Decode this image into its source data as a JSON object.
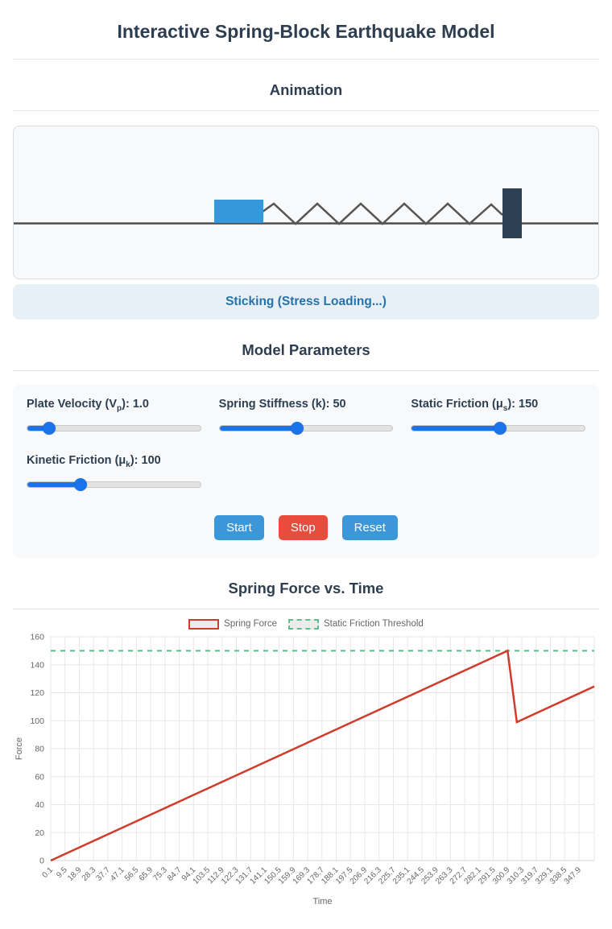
{
  "page": {
    "title": "Interactive Spring-Block Earthquake Model"
  },
  "colors": {
    "heading": "#2c3e50",
    "accent_blue": "#1a73e8",
    "button_blue": "#3c97d9",
    "button_red": "#e74c3c",
    "status_bg": "#e7eff7",
    "status_text": "#2573ab",
    "canvas_bg": "#f8f9fa",
    "panel_bg": "#f8f9fa",
    "block": "#3498db",
    "plate": "#2e4053",
    "ground": "#4d4d4d",
    "spring": "#555555",
    "chart_red": "#cf3c2c",
    "chart_green": "#5cbe8b",
    "grid": "#e7e7e7",
    "axis_text": "#666666",
    "legend_fill": "#ececec"
  },
  "animation": {
    "heading": "Animation",
    "status": "Sticking (Stress Loading...)"
  },
  "parameters": {
    "heading": "Model Parameters",
    "sliders": [
      {
        "id": "plate-velocity",
        "label_prefix": "Plate Velocity (V",
        "label_sub": "p",
        "label_suffix": "): 1.0",
        "value": 1.0,
        "percent": 13
      },
      {
        "id": "spring-stiffness",
        "label_prefix": "Spring Stiffness (k): 50",
        "label_sub": "",
        "label_suffix": "",
        "value": 50,
        "percent": 45
      },
      {
        "id": "static-friction",
        "label_prefix": "Static Friction (μ",
        "label_sub": "s",
        "label_suffix": "): 150",
        "value": 150,
        "percent": 51
      },
      {
        "id": "kinetic-friction",
        "label_prefix": "Kinetic Friction (μ",
        "label_sub": "k",
        "label_suffix": "): 100",
        "value": 100,
        "percent": 31
      }
    ],
    "buttons": [
      {
        "label": "Start",
        "color": "#3c97d9"
      },
      {
        "label": "Stop",
        "color": "#e74c3c"
      },
      {
        "label": "Reset",
        "color": "#3c97d9"
      }
    ]
  },
  "chart": {
    "heading": "Spring Force vs. Time"
  },
  "chart_data": {
    "type": "line",
    "title": "Spring Force vs. Time",
    "xlabel": "Time",
    "ylabel": "Force",
    "ylim": [
      0,
      160
    ],
    "y_ticks": [
      0,
      20,
      40,
      60,
      80,
      100,
      120,
      140,
      160
    ],
    "x_domain": [
      0.1,
      358
    ],
    "x_tick_labels": [
      "0.1",
      "9.5",
      "18.9",
      "28.3",
      "37.7",
      "47.1",
      "56.5",
      "65.9",
      "75.3",
      "84.7",
      "94.1",
      "103.5",
      "112.9",
      "122.3",
      "131.7",
      "141.1",
      "150.5",
      "159.9",
      "169.3",
      "178.7",
      "188.1",
      "197.5",
      "206.9",
      "216.3",
      "225.7",
      "235.1",
      "244.5",
      "253.9",
      "263.3",
      "272.7",
      "282.1",
      "291.5",
      "300.9",
      "310.3",
      "319.7",
      "329.1",
      "338.5",
      "347.9"
    ],
    "x_tick_start": 0.1,
    "x_tick_step": 9.4,
    "grid": true,
    "legend_position": "top",
    "series": [
      {
        "name": "Spring Force",
        "color": "#cf3c2c",
        "dashed": false,
        "points": [
          [
            0.1,
            0
          ],
          [
            300.9,
            150
          ],
          [
            307,
            99
          ],
          [
            358,
            124.5
          ]
        ]
      },
      {
        "name": "Static Friction Threshold",
        "color": "#5cbe8b",
        "dashed": true,
        "points": [
          [
            0.1,
            150
          ],
          [
            358,
            150
          ]
        ]
      }
    ]
  }
}
